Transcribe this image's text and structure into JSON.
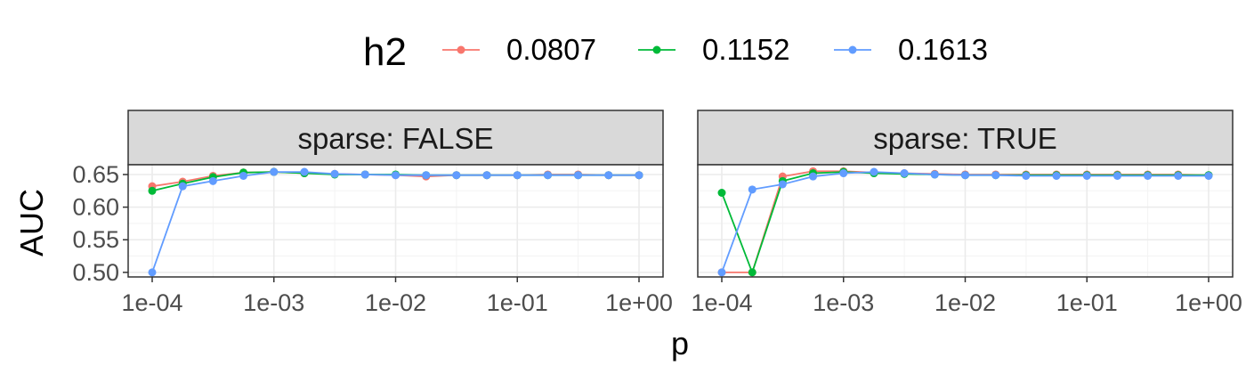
{
  "chart_data": {
    "type": "line",
    "xlabel": "p",
    "ylabel": "AUC",
    "x_scale": "log10",
    "x": [
      0.0001,
      0.000178,
      0.000316,
      0.000562,
      0.001,
      0.00178,
      0.00316,
      0.00562,
      0.01,
      0.0178,
      0.0316,
      0.0562,
      0.1,
      0.178,
      0.316,
      0.562,
      1
    ],
    "x_ticks": [
      0.0001,
      0.001,
      0.01,
      0.1,
      1
    ],
    "x_tick_labels": [
      "1e-04",
      "1e-03",
      "1e-02",
      "1e-01",
      "1e+00"
    ],
    "ylim": [
      0.493,
      0.665
    ],
    "y_ticks": [
      0.5,
      0.55,
      0.6,
      0.65
    ],
    "y_tick_labels": [
      "0.50",
      "0.55",
      "0.60",
      "0.65"
    ],
    "grid": true,
    "legend": {
      "title": "h2",
      "position": "top",
      "entries": [
        "0.0807",
        "0.1152",
        "0.1613"
      ]
    },
    "colors": [
      "#F8766D",
      "#00BA38",
      "#619CFF"
    ],
    "panels": [
      {
        "label": "sparse: FALSE",
        "series": [
          {
            "name": "0.0807",
            "values": [
              0.632,
              0.639,
              0.648,
              0.653,
              0.654,
              0.652,
              0.651,
              0.65,
              0.649,
              0.647,
              0.649,
              0.649,
              0.649,
              0.65,
              0.65,
              0.649,
              0.649
            ]
          },
          {
            "name": "0.1152",
            "values": [
              0.625,
              0.636,
              0.646,
              0.653,
              0.654,
              0.652,
              0.65,
              0.65,
              0.65,
              0.649,
              0.649,
              0.649,
              0.649,
              0.649,
              0.649,
              0.649,
              0.649
            ]
          },
          {
            "name": "0.1613",
            "values": [
              0.5,
              0.632,
              0.64,
              0.648,
              0.654,
              0.654,
              0.651,
              0.65,
              0.649,
              0.649,
              0.649,
              0.649,
              0.649,
              0.649,
              0.649,
              0.649,
              0.649
            ]
          }
        ]
      },
      {
        "label": "sparse: TRUE",
        "series": [
          {
            "name": "0.0807",
            "values": [
              0.5,
              0.5,
              0.647,
              0.655,
              0.655,
              0.653,
              0.652,
              0.651,
              0.65,
              0.65,
              0.65,
              0.65,
              0.65,
              0.65,
              0.65,
              0.65,
              0.649
            ]
          },
          {
            "name": "0.1152",
            "values": [
              0.622,
              0.5,
              0.64,
              0.652,
              0.654,
              0.652,
              0.651,
              0.65,
              0.649,
              0.649,
              0.649,
              0.649,
              0.649,
              0.649,
              0.649,
              0.649,
              0.649
            ]
          },
          {
            "name": "0.1613",
            "values": [
              0.5,
              0.627,
              0.635,
              0.647,
              0.652,
              0.654,
              0.652,
              0.65,
              0.649,
              0.649,
              0.648,
              0.648,
              0.648,
              0.648,
              0.648,
              0.648,
              0.648
            ]
          }
        ]
      }
    ]
  }
}
